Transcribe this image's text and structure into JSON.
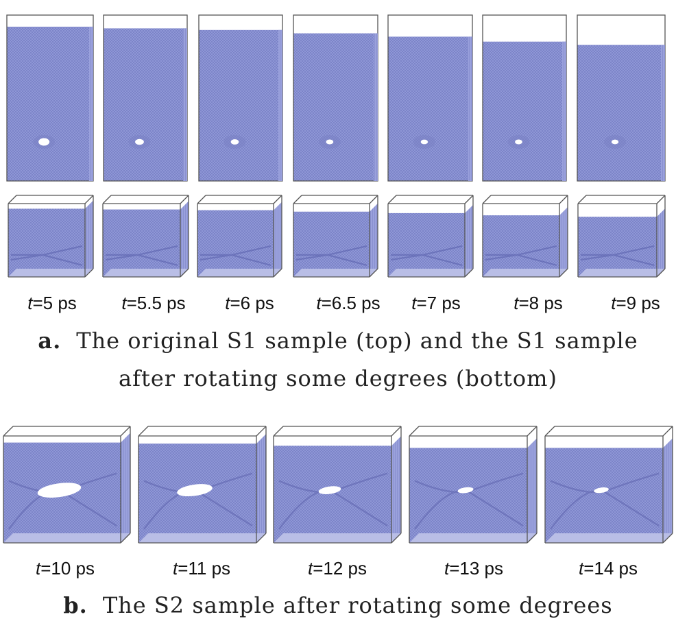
{
  "figure": {
    "colors": {
      "atoms": "#8f97d6",
      "atoms_dark": "#6f77bf",
      "box": "#555555",
      "void": "#ffffff"
    },
    "part_a": {
      "letter": "a.",
      "caption_line1": "The original S1 sample (top) and the S1 sample",
      "caption_line2": "after rotating some degrees (bottom)",
      "time_prefix": "t",
      "times": [
        "=5 ps",
        "=5.5 ps",
        "=6 ps",
        "=6.5 ps",
        "=7 ps",
        "=8 ps",
        "=9 ps"
      ],
      "void_level": [
        1.0,
        0.6,
        0.45,
        0.35,
        0.3,
        0.35,
        0.3
      ],
      "fill_level": [
        0.93,
        0.92,
        0.91,
        0.89,
        0.87,
        0.84,
        0.82
      ]
    },
    "part_b": {
      "letter": "b.",
      "caption": "The S2 sample after rotating some degrees",
      "time_prefix": "t",
      "times": [
        "=10 ps",
        "=11 ps",
        "=12 ps",
        "=13 ps",
        "=14 ps"
      ],
      "void_level": [
        1.0,
        0.75,
        0.35,
        0.15,
        0.12
      ],
      "fill_level": [
        0.9,
        0.89,
        0.87,
        0.85,
        0.85
      ]
    }
  }
}
